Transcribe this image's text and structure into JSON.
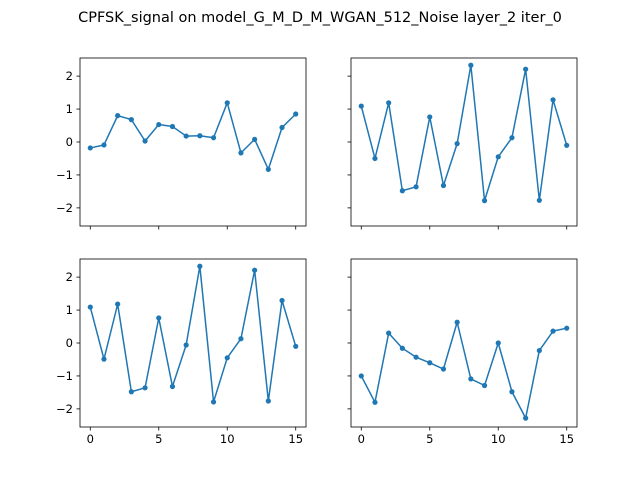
{
  "figure": {
    "title": "CPFSK_signal on model_G_M_D_M_WGAN_512_Noise layer_2 iter_0"
  },
  "chart_data": [
    {
      "type": "line",
      "position": "top-left",
      "x": [
        0,
        1,
        2,
        3,
        4,
        5,
        6,
        7,
        8,
        9,
        10,
        11,
        12,
        13,
        14,
        15
      ],
      "series": [
        {
          "values": [
            -0.18,
            -0.09,
            0.8,
            0.68,
            0.03,
            0.53,
            0.47,
            0.18,
            0.19,
            0.13,
            1.19,
            -0.33,
            0.08,
            -0.83,
            0.44,
            0.85
          ],
          "color": "#1f77b4"
        }
      ],
      "xlim": [
        -0.75,
        15.75
      ],
      "ylim": [
        -2.55,
        2.55
      ],
      "xticks": [
        0,
        5,
        10,
        15
      ],
      "yticks": [
        -2,
        -1,
        0,
        1,
        2
      ],
      "xtick_labels_shown": false,
      "ytick_labels_shown": true,
      "grid": false
    },
    {
      "type": "line",
      "position": "top-right",
      "x": [
        0,
        1,
        2,
        3,
        4,
        5,
        6,
        7,
        8,
        9,
        10,
        11,
        12,
        13,
        14,
        15
      ],
      "series": [
        {
          "values": [
            1.09,
            -0.5,
            1.19,
            -1.48,
            -1.36,
            0.76,
            -1.32,
            -0.05,
            2.33,
            -1.78,
            -0.45,
            0.13,
            2.21,
            -1.77,
            1.28,
            -0.1
          ],
          "color": "#1f77b4"
        }
      ],
      "xlim": [
        -0.75,
        15.75
      ],
      "ylim": [
        -2.55,
        2.55
      ],
      "xticks": [
        0,
        5,
        10,
        15
      ],
      "yticks": [
        -2,
        -1,
        0,
        1,
        2
      ],
      "xtick_labels_shown": false,
      "ytick_labels_shown": false,
      "grid": false
    },
    {
      "type": "line",
      "position": "bottom-left",
      "x": [
        0,
        1,
        2,
        3,
        4,
        5,
        6,
        7,
        8,
        9,
        10,
        11,
        12,
        13,
        14,
        15
      ],
      "series": [
        {
          "values": [
            1.09,
            -0.49,
            1.18,
            -1.48,
            -1.36,
            0.76,
            -1.32,
            -0.06,
            2.33,
            -1.79,
            -0.45,
            0.13,
            2.21,
            -1.76,
            1.29,
            -0.1
          ],
          "color": "#1f77b4"
        }
      ],
      "xlim": [
        -0.75,
        15.75
      ],
      "ylim": [
        -2.55,
        2.55
      ],
      "xticks": [
        0,
        5,
        10,
        15
      ],
      "yticks": [
        -2,
        -1,
        0,
        1,
        2
      ],
      "xtick_labels_shown": true,
      "ytick_labels_shown": true,
      "grid": false
    },
    {
      "type": "line",
      "position": "bottom-right",
      "x": [
        0,
        1,
        2,
        3,
        4,
        5,
        6,
        7,
        8,
        9,
        10,
        11,
        12,
        13,
        14,
        15
      ],
      "series": [
        {
          "values": [
            -1.0,
            -1.8,
            0.3,
            -0.16,
            -0.43,
            -0.6,
            -0.79,
            0.63,
            -1.09,
            -1.29,
            0.0,
            -1.48,
            -2.28,
            -0.23,
            0.36,
            0.45
          ],
          "color": "#1f77b4"
        }
      ],
      "xlim": [
        -0.75,
        15.75
      ],
      "ylim": [
        -2.55,
        2.55
      ],
      "xticks": [
        0,
        5,
        10,
        15
      ],
      "yticks": [
        -2,
        -1,
        0,
        1,
        2
      ],
      "xtick_labels_shown": true,
      "ytick_labels_shown": false,
      "grid": false
    }
  ]
}
